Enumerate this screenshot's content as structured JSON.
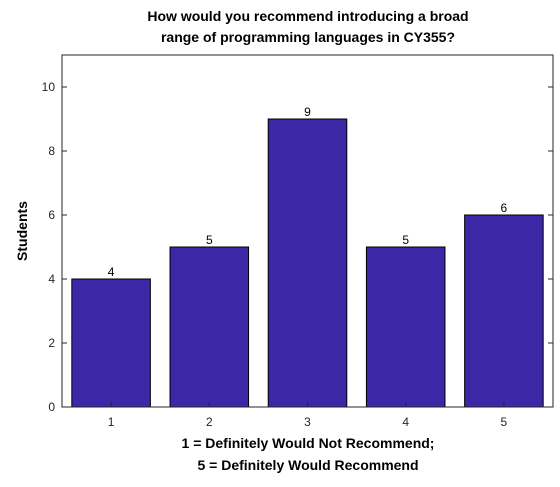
{
  "chart_data": {
    "type": "bar",
    "title": [
      "How would you recommend introducing a broad",
      "range of programming languages in CY355?"
    ],
    "xlabel": [
      "1 = Definitely Would Not Recommend;",
      "5 = Definitely Would Recommend"
    ],
    "ylabel": "Students",
    "categories": [
      "1",
      "2",
      "3",
      "4",
      "5"
    ],
    "values": [
      4,
      5,
      9,
      5,
      6
    ],
    "data_labels": [
      "4",
      "5",
      "9",
      "5",
      "6"
    ],
    "ylim": [
      0,
      11
    ],
    "yticks": [
      0,
      2,
      4,
      6,
      8,
      10
    ],
    "grid": false,
    "legend": "none",
    "colors": {
      "bar_fill": "#3c27a6",
      "bar_edge": "#000000",
      "axis": "#262626",
      "text": "#000000"
    }
  }
}
